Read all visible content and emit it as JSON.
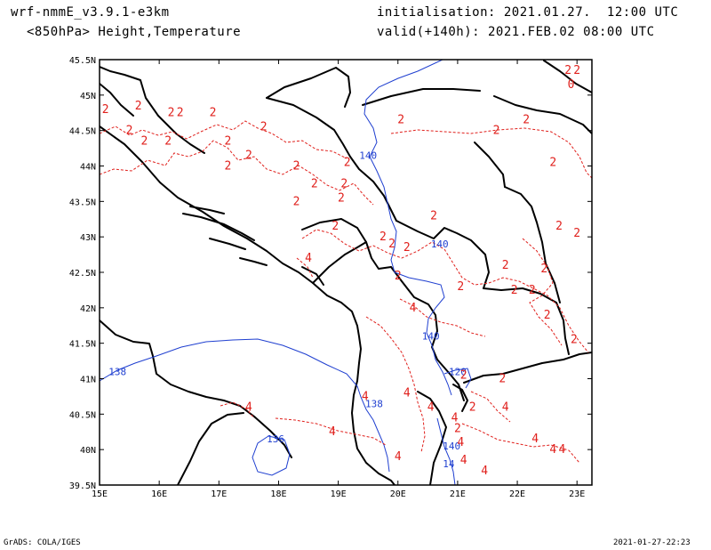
{
  "header": {
    "model": "wrf-nmmE_v3.9.1-e3km",
    "field": "<850hPa> Height,Temperature",
    "init": "initialisation: 2021.01.27.  12:00 UTC",
    "valid": "valid(+140h): 2021.FEB.02 08:00 UTC"
  },
  "footer": {
    "left": "GrADS: COLA/IGES",
    "right": "2021-01-27-22:23"
  },
  "map": {
    "lon_range": [
      15,
      23.25
    ],
    "lat_range": [
      39.5,
      45.5
    ],
    "lon_ticks": [
      "15E",
      "16E",
      "17E",
      "18E",
      "19E",
      "20E",
      "21E",
      "22E",
      "23E"
    ],
    "lat_ticks": [
      "45.5N",
      "45N",
      "44.5N",
      "44N",
      "43.5N",
      "43N",
      "42.5N",
      "42N",
      "41.5N",
      "41N",
      "40.5N",
      "40N",
      "39.5N"
    ],
    "colors": {
      "coast": "#000000",
      "temperature": "#e0201c",
      "height": "#1f3fd0"
    },
    "height_labels": [
      {
        "text": "140",
        "lon": 19.5,
        "lat": 44.1
      },
      {
        "text": "140",
        "lon": 20.7,
        "lat": 42.85
      },
      {
        "text": "140",
        "lon": 20.55,
        "lat": 41.55
      },
      {
        "text": "120",
        "lon": 21.0,
        "lat": 41.05
      },
      {
        "text": "138",
        "lon": 15.3,
        "lat": 41.05
      },
      {
        "text": "138",
        "lon": 19.6,
        "lat": 40.6
      },
      {
        "text": "136",
        "lon": 17.95,
        "lat": 40.1
      },
      {
        "text": "140",
        "lon": 20.9,
        "lat": 40.0
      },
      {
        "text": "14",
        "lon": 20.85,
        "lat": 39.75
      }
    ],
    "temp_labels": [
      {
        "text": "2",
        "lon": 15.1,
        "lat": 44.75
      },
      {
        "text": "2",
        "lon": 15.65,
        "lat": 44.8
      },
      {
        "text": "2",
        "lon": 16.2,
        "lat": 44.7
      },
      {
        "text": "2",
        "lon": 16.35,
        "lat": 44.7
      },
      {
        "text": "2",
        "lon": 16.9,
        "lat": 44.7
      },
      {
        "text": "2",
        "lon": 15.5,
        "lat": 44.45
      },
      {
        "text": "2",
        "lon": 15.75,
        "lat": 44.3
      },
      {
        "text": "2",
        "lon": 16.15,
        "lat": 44.3
      },
      {
        "text": "2",
        "lon": 17.15,
        "lat": 44.3
      },
      {
        "text": "2",
        "lon": 17.75,
        "lat": 44.5
      },
      {
        "text": "2",
        "lon": 17.5,
        "lat": 44.1
      },
      {
        "text": "2",
        "lon": 17.15,
        "lat": 43.95
      },
      {
        "text": "2",
        "lon": 18.3,
        "lat": 43.95
      },
      {
        "text": "2",
        "lon": 18.6,
        "lat": 43.7
      },
      {
        "text": "2",
        "lon": 18.3,
        "lat": 43.45
      },
      {
        "text": "2",
        "lon": 19.1,
        "lat": 43.7
      },
      {
        "text": "2",
        "lon": 19.05,
        "lat": 43.5
      },
      {
        "text": "2",
        "lon": 19.15,
        "lat": 44.0
      },
      {
        "text": "2",
        "lon": 20.6,
        "lat": 43.25
      },
      {
        "text": "2",
        "lon": 19.75,
        "lat": 42.95
      },
      {
        "text": "2",
        "lon": 18.95,
        "lat": 43.1
      },
      {
        "text": "2",
        "lon": 19.9,
        "lat": 42.85
      },
      {
        "text": "2",
        "lon": 20.15,
        "lat": 42.8
      },
      {
        "text": "2",
        "lon": 20.0,
        "lat": 42.4
      },
      {
        "text": "2",
        "lon": 21.05,
        "lat": 42.25
      },
      {
        "text": "2",
        "lon": 21.8,
        "lat": 42.55
      },
      {
        "text": "2",
        "lon": 21.95,
        "lat": 42.2
      },
      {
        "text": "2",
        "lon": 22.25,
        "lat": 42.2
      },
      {
        "text": "2",
        "lon": 22.45,
        "lat": 42.5
      },
      {
        "text": "2",
        "lon": 22.5,
        "lat": 41.85
      },
      {
        "text": "2",
        "lon": 22.95,
        "lat": 41.5
      },
      {
        "text": "2",
        "lon": 22.7,
        "lat": 43.1
      },
      {
        "text": "2",
        "lon": 23.0,
        "lat": 43.0
      },
      {
        "text": "2",
        "lon": 22.6,
        "lat": 44.0
      },
      {
        "text": "2",
        "lon": 21.65,
        "lat": 44.45
      },
      {
        "text": "2",
        "lon": 22.15,
        "lat": 44.6
      },
      {
        "text": "2",
        "lon": 23.0,
        "lat": 45.3
      },
      {
        "text": "2",
        "lon": 22.85,
        "lat": 45.3
      },
      {
        "text": "0",
        "lon": 22.9,
        "lat": 45.1
      },
      {
        "text": "2",
        "lon": 20.05,
        "lat": 44.6
      },
      {
        "text": "2",
        "lon": 21.1,
        "lat": 41.0
      },
      {
        "text": "2",
        "lon": 21.75,
        "lat": 40.95
      },
      {
        "text": "2",
        "lon": 21.25,
        "lat": 40.55
      },
      {
        "text": "2",
        "lon": 21.0,
        "lat": 40.25
      },
      {
        "text": "4",
        "lon": 18.5,
        "lat": 42.65
      },
      {
        "text": "4",
        "lon": 20.25,
        "lat": 41.95
      },
      {
        "text": "4",
        "lon": 20.15,
        "lat": 40.75
      },
      {
        "text": "4",
        "lon": 19.45,
        "lat": 40.7
      },
      {
        "text": "4",
        "lon": 18.9,
        "lat": 40.2
      },
      {
        "text": "4",
        "lon": 17.5,
        "lat": 40.55
      },
      {
        "text": "4",
        "lon": 20.55,
        "lat": 40.55
      },
      {
        "text": "4",
        "lon": 21.8,
        "lat": 40.55
      },
      {
        "text": "4",
        "lon": 20.95,
        "lat": 40.4
      },
      {
        "text": "4",
        "lon": 21.05,
        "lat": 40.05
      },
      {
        "text": "4",
        "lon": 21.1,
        "lat": 39.8
      },
      {
        "text": "4",
        "lon": 21.45,
        "lat": 39.65
      },
      {
        "text": "4",
        "lon": 22.3,
        "lat": 40.1
      },
      {
        "text": "4",
        "lon": 22.6,
        "lat": 39.95
      },
      {
        "text": "4",
        "lon": 22.75,
        "lat": 39.95
      },
      {
        "text": "4",
        "lon": 20.0,
        "lat": 39.85
      }
    ]
  }
}
